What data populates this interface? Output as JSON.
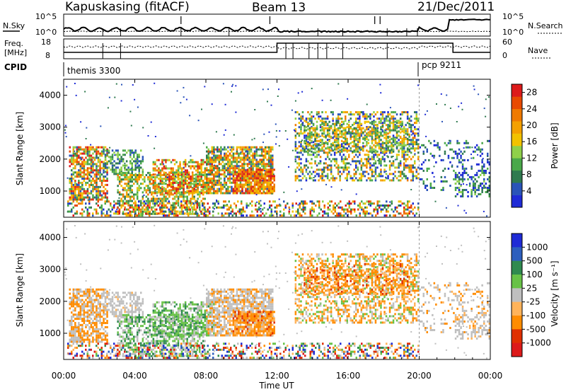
{
  "header": {
    "station": "Kapuskasing (fitACF)",
    "beam": "Beam 13",
    "date": "21/Dec/2011"
  },
  "top_panel": {
    "left_label": "N.Sky",
    "right_label": "N.Search",
    "left_ticks": [
      "10^5",
      "10^0"
    ],
    "right_ticks": [
      "10^5",
      "10^0"
    ]
  },
  "freq_panel": {
    "left_label_1": "Freq.",
    "left_label_2": "[MHz]",
    "right_label": "Nave",
    "left_ticks": [
      "18",
      "8"
    ],
    "right_ticks": [
      "60",
      "0"
    ]
  },
  "cpid": {
    "label": "CPID",
    "segments": [
      {
        "name": "themis 3300",
        "start_hour": 0,
        "end_hour": 20
      },
      {
        "name": "pcp 9211",
        "start_hour": 20,
        "end_hour": 24
      }
    ]
  },
  "colors": {
    "power": [
      "#1f2bd6",
      "#2a54b8",
      "#2f7a4f",
      "#4aa84a",
      "#8fd04a",
      "#f2c200",
      "#f4a000",
      "#ef7a00",
      "#e84a00",
      "#dd1a1a"
    ],
    "velocity": [
      "#1f2bd6",
      "#2d5fbe",
      "#2f8a4f",
      "#68c247",
      "#bfbfbf",
      "#ffb35a",
      "#ff8c00",
      "#e03000",
      "#dd1a1a"
    ]
  },
  "chart_data": [
    {
      "type": "heatmap",
      "panel": "power",
      "ylabel": "Slant Range [km]",
      "xlabel": "Time UT",
      "x_ticks": [
        "00:00",
        "04:00",
        "08:00",
        "12:00",
        "16:00",
        "20:00",
        "00:00"
      ],
      "y_ticks": [
        "1000",
        "2000",
        "3000",
        "4000"
      ],
      "xlim_hours": [
        0,
        24
      ],
      "ylim_km": [
        180,
        4500
      ],
      "colorbar_label": "Power [dB]",
      "colorbar_ticks": [
        "4",
        "8",
        "12",
        "16",
        "20",
        "24",
        "28"
      ],
      "colorbar_range": [
        0,
        30
      ]
    },
    {
      "type": "heatmap",
      "panel": "velocity",
      "ylabel": "Slant Range [km]",
      "xlabel": "Time UT",
      "x_ticks": [
        "00:00",
        "04:00",
        "08:00",
        "12:00",
        "16:00",
        "20:00",
        "00:00"
      ],
      "y_ticks": [
        "1000",
        "2000",
        "3000",
        "4000"
      ],
      "xlim_hours": [
        0,
        24
      ],
      "ylim_km": [
        180,
        4500
      ],
      "colorbar_label": "Velocity [m s⁻¹]",
      "colorbar_ticks": [
        "1000",
        "500",
        "100",
        "25",
        "-25",
        "-100",
        "-500",
        "-1000"
      ]
    }
  ],
  "x_axis": {
    "ticks": [
      "00:00",
      "04:00",
      "08:00",
      "12:00",
      "16:00",
      "20:00",
      "00:00"
    ],
    "label": "Time UT"
  }
}
